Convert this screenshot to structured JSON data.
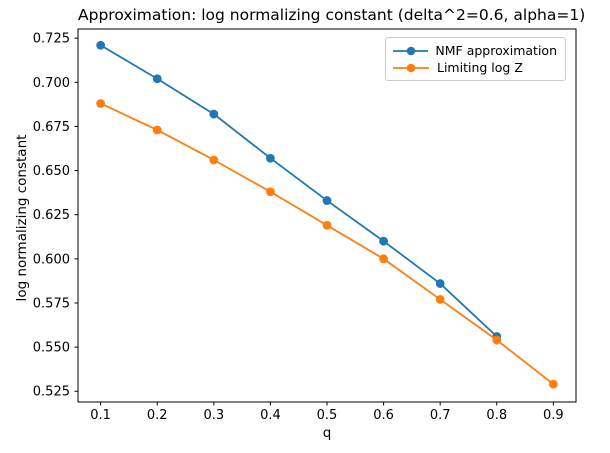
{
  "figure": {
    "background": "#ffffff"
  },
  "chart_data": {
    "type": "line",
    "title": "Approximation: log normalizing constant (delta^2=0.6, alpha=1)",
    "xlabel": "q",
    "ylabel": "log normalizing constant",
    "xlim": [
      0.06,
      0.94
    ],
    "ylim": [
      0.5189,
      0.7302
    ],
    "xticks": [
      0.1,
      0.2,
      0.3,
      0.4,
      0.5,
      0.6,
      0.7,
      0.8,
      0.9
    ],
    "xtick_labels": [
      "0.1",
      "0.2",
      "0.3",
      "0.4",
      "0.5",
      "0.6",
      "0.7",
      "0.8",
      "0.9"
    ],
    "yticks": [
      0.525,
      0.55,
      0.575,
      0.6,
      0.625,
      0.65,
      0.675,
      0.7,
      0.725
    ],
    "ytick_labels": [
      "0.525",
      "0.550",
      "0.575",
      "0.600",
      "0.625",
      "0.650",
      "0.675",
      "0.700",
      "0.725"
    ],
    "grid": false,
    "legend_position": "upper right",
    "series": [
      {
        "name": "NMF approximation",
        "color": "#1f77b4",
        "marker": "circle",
        "x": [
          0.1,
          0.2,
          0.3,
          0.4,
          0.5,
          0.6,
          0.7,
          0.8
        ],
        "y": [
          0.721,
          0.702,
          0.682,
          0.657,
          0.633,
          0.61,
          0.586,
          0.556
        ]
      },
      {
        "name": "Limiting log Z",
        "color": "#ff7f0e",
        "marker": "circle",
        "x": [
          0.1,
          0.2,
          0.3,
          0.4,
          0.5,
          0.6,
          0.7,
          0.8,
          0.9
        ],
        "y": [
          0.688,
          0.673,
          0.656,
          0.638,
          0.619,
          0.6,
          0.577,
          0.554,
          0.529
        ]
      }
    ]
  }
}
